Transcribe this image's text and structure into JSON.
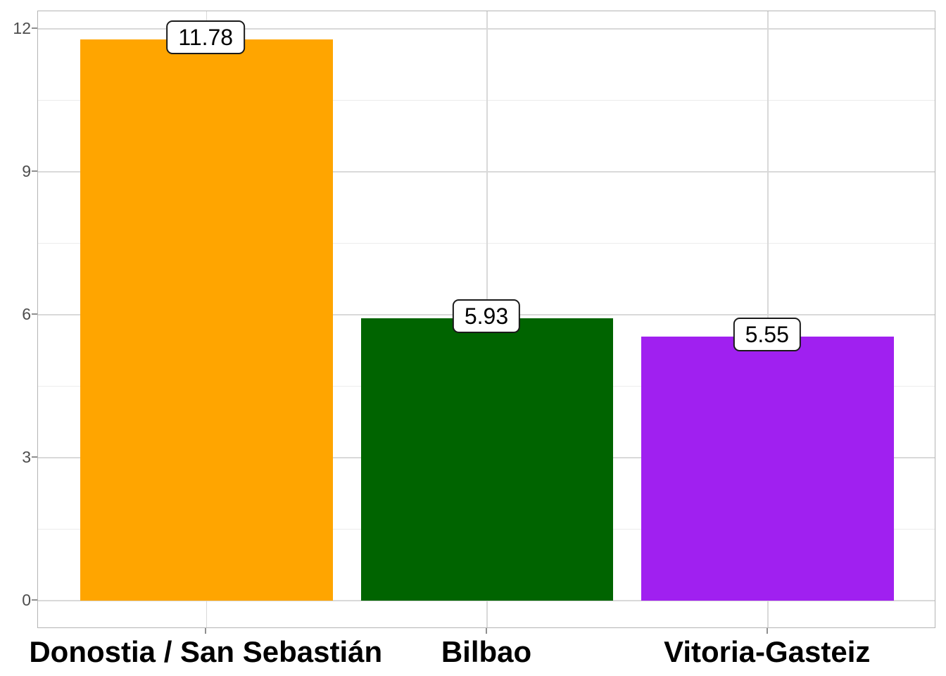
{
  "chart_data": {
    "type": "bar",
    "title": "",
    "xlabel": "",
    "ylabel": "",
    "categories": [
      "Donostia / San Sebastián",
      "Bilbao",
      "Vitoria-Gasteiz"
    ],
    "values": [
      11.78,
      5.93,
      5.55
    ],
    "bar_labels": [
      "11.78",
      "5.93",
      "5.55"
    ],
    "bar_colors": [
      "#FFA500",
      "#006400",
      "#A020F0"
    ],
    "y_ticks": [
      0,
      3,
      6,
      9,
      12
    ],
    "y_tick_labels": [
      "0",
      "3",
      "6",
      "9",
      "12"
    ],
    "ylim": [
      -0.59,
      12.37
    ],
    "grid": {
      "horizontal_major": true,
      "horizontal_minor": true,
      "vertical_at_categories": true
    },
    "legend": "none"
  },
  "style": {
    "background": "#FFFFFF",
    "panel_border": "#B4B4B4",
    "grid_major": "#D9D9D9",
    "grid_minor": "#ECECEC",
    "tick_color": "#8F8F8F",
    "y_label_color": "#4D4D4D",
    "x_label_color": "#000000",
    "value_label_bg": "#FFFFFF",
    "value_label_border": "#1A1A1A"
  }
}
